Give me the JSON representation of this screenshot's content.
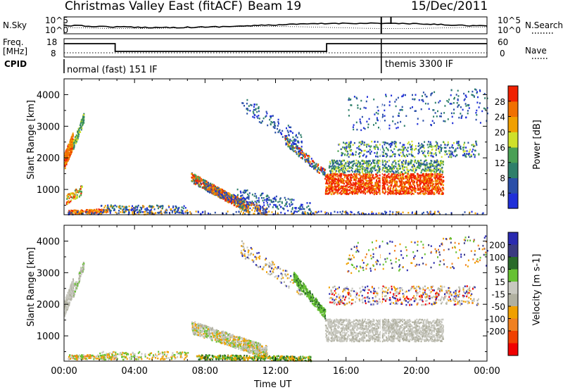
{
  "header": {
    "station": "Christmas Valley East (fitACF)",
    "beam": "Beam 19",
    "date": "15/Dec/2011"
  },
  "strip_labels": {
    "nsky": "N.Sky",
    "nsky_ticks": [
      "10^5",
      "10^0"
    ],
    "nsearch": "N.Search",
    "nsearch_ticks": [
      "10^5",
      "10^0"
    ],
    "freq": "Freq.",
    "freq_unit": "[MHz]",
    "freq_ticks": [
      "18",
      "8"
    ],
    "nave": "Nave",
    "nave_ticks": [
      "60",
      "0"
    ],
    "cpid": "CPID",
    "cpid_segments": [
      "normal (fast) 151 IF",
      "themis 3300 IF"
    ]
  },
  "colors": {
    "power": [
      "#1f2fd8",
      "#2a4fa8",
      "#2e7f6a",
      "#4aa055",
      "#cfe02a",
      "#f0a000",
      "#f07000",
      "#f02000"
    ],
    "velocity": [
      "#2a2ab0",
      "#3a3a80",
      "#2a6a2a",
      "#66c033",
      "#c8c8c0",
      "#b0b0a0",
      "#f0a000",
      "#f08020",
      "#f04000",
      "#f00000"
    ]
  },
  "chart_data": [
    {
      "type": "heatmap",
      "title": "",
      "xlabel": "",
      "ylabel": "Slant Range [km]",
      "xlim": [
        "00:00",
        "24:00"
      ],
      "ylim": [
        200,
        4500
      ],
      "x_ticks": [
        "00:00",
        "04:00",
        "08:00",
        "12:00",
        "16:00",
        "20:00",
        "00:00"
      ],
      "y_ticks": [
        1000,
        2000,
        3000,
        4000
      ],
      "colorbar": {
        "label": "Power [dB]",
        "ticks": [
          4,
          8,
          12,
          16,
          20,
          24,
          28
        ]
      }
    },
    {
      "type": "heatmap",
      "title": "",
      "xlabel": "Time UT",
      "ylabel": "Slant Range [km]",
      "xlim": [
        "00:00",
        "24:00"
      ],
      "ylim": [
        200,
        4500
      ],
      "x_ticks": [
        "00:00",
        "04:00",
        "08:00",
        "12:00",
        "16:00",
        "20:00",
        "00:00"
      ],
      "y_ticks": [
        1000,
        2000,
        3000,
        4000
      ],
      "colorbar": {
        "label": "Velocity [m s-1]",
        "ticks": [
          200,
          100,
          50,
          15,
          -15,
          -50,
          -100,
          -200
        ]
      }
    }
  ]
}
